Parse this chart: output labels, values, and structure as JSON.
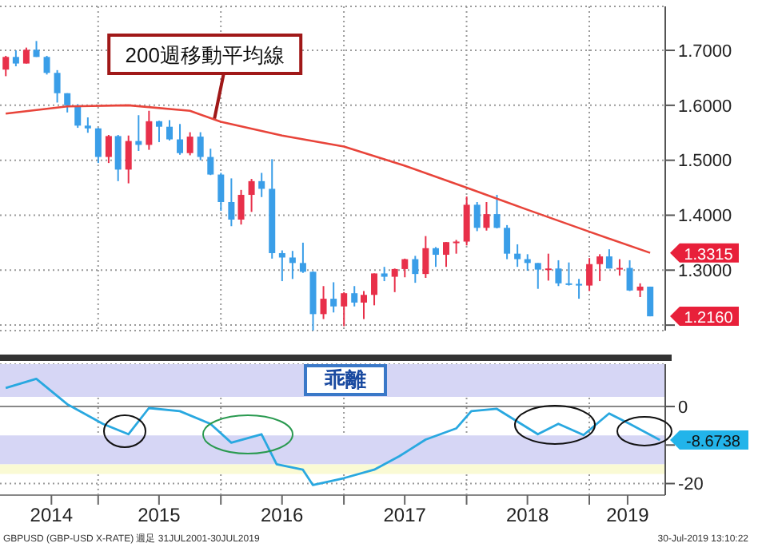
{
  "chart_data": [
    {
      "type": "candlestick",
      "tick_labels": "y",
      "grid": true,
      "x": [
        "2014-04",
        "2014-05",
        "2014-06",
        "2014-07",
        "2014-08",
        "2014-09",
        "2014-10",
        "2014-11",
        "2014-12",
        "2015-01",
        "2015-02",
        "2015-03",
        "2015-04",
        "2015-05",
        "2015-06",
        "2015-07",
        "2015-08",
        "2015-09",
        "2015-10",
        "2015-11",
        "2015-12",
        "2016-01",
        "2016-02",
        "2016-03",
        "2016-04",
        "2016-05",
        "2016-06",
        "2016-07",
        "2016-08",
        "2016-09",
        "2016-10",
        "2016-11",
        "2016-12",
        "2017-01",
        "2017-02",
        "2017-03",
        "2017-04",
        "2017-05",
        "2017-06",
        "2017-07",
        "2017-08",
        "2017-09",
        "2017-10",
        "2017-11",
        "2017-12",
        "2018-01",
        "2018-02",
        "2018-03",
        "2018-04",
        "2018-05",
        "2018-06",
        "2018-07",
        "2018-08",
        "2018-09",
        "2018-10",
        "2018-11",
        "2018-12",
        "2019-01",
        "2019-02",
        "2019-03",
        "2019-04",
        "2019-05",
        "2019-06",
        "2019-07"
      ],
      "ohlc": [
        [
          1.665,
          1.69,
          1.653,
          1.688
        ],
        [
          1.688,
          1.7,
          1.671,
          1.676
        ],
        [
          1.676,
          1.705,
          1.676,
          1.701
        ],
        [
          1.701,
          1.717,
          1.688,
          1.688
        ],
        [
          1.688,
          1.69,
          1.656,
          1.659
        ],
        [
          1.659,
          1.664,
          1.605,
          1.622
        ],
        [
          1.622,
          1.622,
          1.587,
          1.6
        ],
        [
          1.6,
          1.602,
          1.559,
          1.563
        ],
        [
          1.563,
          1.578,
          1.55,
          1.558
        ],
        [
          1.558,
          1.559,
          1.495,
          1.506
        ],
        [
          1.506,
          1.546,
          1.495,
          1.544
        ],
        [
          1.544,
          1.546,
          1.462,
          1.483
        ],
        [
          1.483,
          1.545,
          1.458,
          1.535
        ],
        [
          1.535,
          1.582,
          1.517,
          1.528
        ],
        [
          1.528,
          1.59,
          1.519,
          1.571
        ],
        [
          1.571,
          1.572,
          1.533,
          1.561
        ],
        [
          1.561,
          1.573,
          1.536,
          1.538
        ],
        [
          1.538,
          1.566,
          1.51,
          1.513
        ],
        [
          1.513,
          1.551,
          1.509,
          1.543
        ],
        [
          1.543,
          1.551,
          1.5,
          1.506
        ],
        [
          1.506,
          1.521,
          1.473,
          1.474
        ],
        [
          1.474,
          1.477,
          1.408,
          1.424
        ],
        [
          1.424,
          1.467,
          1.38,
          1.392
        ],
        [
          1.392,
          1.446,
          1.383,
          1.437
        ],
        [
          1.437,
          1.466,
          1.406,
          1.462
        ],
        [
          1.462,
          1.477,
          1.433,
          1.448
        ],
        [
          1.448,
          1.502,
          1.321,
          1.331
        ],
        [
          1.331,
          1.336,
          1.28,
          1.323
        ],
        [
          1.323,
          1.335,
          1.284,
          1.313
        ],
        [
          1.313,
          1.35,
          1.295,
          1.297
        ],
        [
          1.297,
          1.298,
          1.184,
          1.22
        ],
        [
          1.22,
          1.271,
          1.211,
          1.248
        ],
        [
          1.248,
          1.278,
          1.223,
          1.234
        ],
        [
          1.234,
          1.26,
          1.198,
          1.258
        ],
        [
          1.258,
          1.271,
          1.234,
          1.241
        ],
        [
          1.241,
          1.262,
          1.211,
          1.255
        ],
        [
          1.255,
          1.294,
          1.236,
          1.294
        ],
        [
          1.294,
          1.306,
          1.28,
          1.288
        ],
        [
          1.288,
          1.303,
          1.26,
          1.302
        ],
        [
          1.302,
          1.321,
          1.287,
          1.32
        ],
        [
          1.32,
          1.326,
          1.277,
          1.293
        ],
        [
          1.293,
          1.362,
          1.286,
          1.34
        ],
        [
          1.34,
          1.342,
          1.306,
          1.328
        ],
        [
          1.328,
          1.351,
          1.306,
          1.351
        ],
        [
          1.351,
          1.355,
          1.33,
          1.352
        ],
        [
          1.352,
          1.434,
          1.345,
          1.419
        ],
        [
          1.419,
          1.424,
          1.371,
          1.377
        ],
        [
          1.377,
          1.424,
          1.372,
          1.402
        ],
        [
          1.402,
          1.437,
          1.376,
          1.377
        ],
        [
          1.377,
          1.382,
          1.32,
          1.33
        ],
        [
          1.33,
          1.347,
          1.306,
          1.32
        ],
        [
          1.32,
          1.329,
          1.299,
          1.313
        ],
        [
          1.313,
          1.313,
          1.266,
          1.301
        ],
        [
          1.301,
          1.33,
          1.281,
          1.303
        ],
        [
          1.303,
          1.318,
          1.271,
          1.276
        ],
        [
          1.276,
          1.314,
          1.272,
          1.275
        ],
        [
          1.275,
          1.284,
          1.248,
          1.272
        ],
        [
          1.272,
          1.322,
          1.262,
          1.311
        ],
        [
          1.311,
          1.329,
          1.28,
          1.325
        ],
        [
          1.325,
          1.338,
          1.303,
          1.303
        ],
        [
          1.303,
          1.32,
          1.29,
          1.304
        ],
        [
          1.304,
          1.318,
          1.262,
          1.263
        ],
        [
          1.263,
          1.276,
          1.251,
          1.27
        ],
        [
          1.27,
          1.27,
          1.216,
          1.216
        ]
      ],
      "colors": [
        "#e8304a",
        "#3a9ee8",
        "#e8304a",
        "#3a9ee8",
        "#3a9ee8",
        "#3a9ee8",
        "#3a9ee8",
        "#3a9ee8",
        "#3a9ee8",
        "#3a9ee8",
        "#e8304a",
        "#3a9ee8",
        "#e8304a",
        "#3a9ee8",
        "#e8304a",
        "#3a9ee8",
        "#3a9ee8",
        "#3a9ee8",
        "#e8304a",
        "#3a9ee8",
        "#3a9ee8",
        "#3a9ee8",
        "#3a9ee8",
        "#e8304a",
        "#e8304a",
        "#3a9ee8",
        "#3a9ee8",
        "#3a9ee8",
        "#3a9ee8",
        "#3a9ee8",
        "#3a9ee8",
        "#e8304a",
        "#3a9ee8",
        "#e8304a",
        "#3a9ee8",
        "#e8304a",
        "#e8304a",
        "#3a9ee8",
        "#e8304a",
        "#e8304a",
        "#3a9ee8",
        "#e8304a",
        "#3a9ee8",
        "#e8304a",
        "#e8304a",
        "#e8304a",
        "#3a9ee8",
        "#e8304a",
        "#3a9ee8",
        "#3a9ee8",
        "#3a9ee8",
        "#3a9ee8",
        "#3a9ee8",
        "#e8304a",
        "#3a9ee8",
        "#3a9ee8",
        "#3a9ee8",
        "#e8304a",
        "#e8304a",
        "#3a9ee8",
        "#e8304a",
        "#3a9ee8",
        "#e8304a",
        "#3a9ee8"
      ],
      "series": [
        {
          "type": "line",
          "color": "#e8443a",
          "x": [
            "2014-04",
            "2014-10",
            "2015-04",
            "2015-10",
            "2016-01",
            "2016-07",
            "2017-01",
            "2017-07",
            "2018-01",
            "2018-07",
            "2019-01",
            "2019-07"
          ],
          "values": [
            1.585,
            1.598,
            1.6,
            1.59,
            1.57,
            1.545,
            1.525,
            1.49,
            1.45,
            1.41,
            1.37,
            1.3315
          ]
        }
      ],
      "xlim": [
        "2014-03-15",
        "2019-08-15"
      ],
      "xticks": [
        {
          "value": "2015-01-01",
          "label": null
        },
        {
          "value": "2016-01-01",
          "label": null
        },
        {
          "value": "2017-01-01",
          "label": null
        },
        {
          "value": "2018-01-01",
          "label": null
        },
        {
          "value": "2019-01-01",
          "label": null
        }
      ],
      "ylim": [
        1.19,
        1.78
      ],
      "yticks": [
        {
          "value": 1.2,
          "label": null
        },
        {
          "value": 1.3,
          "label": "1.3000"
        },
        {
          "value": 1.4,
          "label": "1.4000"
        },
        {
          "value": 1.5,
          "label": "1.5000"
        },
        {
          "value": 1.6,
          "label": "1.6000"
        },
        {
          "value": 1.7,
          "label": "1.7000"
        }
      ],
      "annotations": [
        {
          "text": "200週移動平均線",
          "x": "2016-01",
          "y": 1.57
        },
        {
          "text": "1.3315",
          "x": "2019-07",
          "y": 1.3315
        },
        {
          "text": "1.2160",
          "x": "2019-07",
          "y": 1.216
        }
      ]
    },
    {
      "type": "line",
      "title": "乖離",
      "grid": true,
      "color": "#29a8e0",
      "x": [
        "2014-04",
        "2014-07",
        "2014-10",
        "2015-01-15",
        "2015-04",
        "2015-06",
        "2015-09",
        "2015-12",
        "2016-02",
        "2016-05",
        "2016-06-15",
        "2016-09",
        "2016-10",
        "2017-01",
        "2017-04",
        "2017-06-15",
        "2017-09",
        "2017-12",
        "2018-01-15",
        "2018-04",
        "2018-08",
        "2018-10",
        "2018-12-15",
        "2019-03",
        "2019-05",
        "2019-07-30"
      ],
      "values": [
        4.8,
        7.2,
        0.6,
        -4.5,
        -7.2,
        -0.4,
        -1.2,
        -4.5,
        -9.4,
        -7.2,
        -15,
        -16.4,
        -20.4,
        -18.6,
        -16.4,
        -12.9,
        -8.6,
        -5.7,
        -1.2,
        -0.6,
        -7.2,
        -4.5,
        -7.4,
        -1.8,
        -4.5,
        -8.6738
      ],
      "xlim": [
        "2014-03-15",
        "2019-08-15"
      ],
      "xticks": [
        {
          "value": "2014-08-15",
          "label": "2014"
        },
        {
          "value": "2015-01-01",
          "label": null
        },
        {
          "value": "2015-07-01",
          "label": "2015"
        },
        {
          "value": "2016-01-01",
          "label": null
        },
        {
          "value": "2016-07-01",
          "label": "2016"
        },
        {
          "value": "2017-01-01",
          "label": null
        },
        {
          "value": "2017-07-01",
          "label": "2017"
        },
        {
          "value": "2018-01-01",
          "label": null
        },
        {
          "value": "2018-07-01",
          "label": "2018"
        },
        {
          "value": "2019-01-01",
          "label": null
        },
        {
          "value": "2019-04-25",
          "label": "2019"
        }
      ],
      "ylim": [
        -23,
        11
      ],
      "yticks": [
        {
          "value": -20,
          "label": "-20"
        },
        {
          "value": -10,
          "label": null
        },
        {
          "value": 0,
          "label": "0"
        }
      ],
      "bands": [
        {
          "axis": "y",
          "from": 2.5,
          "to": 11,
          "color": "#d6d6f5"
        },
        {
          "axis": "y",
          "from": -15,
          "to": -7.5,
          "color": "#d6d6f5"
        },
        {
          "axis": "y",
          "from": -17.5,
          "to": -15,
          "color": "#fafad4"
        }
      ],
      "ref_lines": [
        {
          "axis": "y",
          "value": 0,
          "color": "#888888"
        }
      ],
      "annotations": [
        {
          "text": "-8.6738",
          "x": "2019-07-30",
          "y": -8.6738
        },
        "GBPUSD (GBP-USD X-RATE) 週足 31JUL2001-30JUL2019",
        "30-Jul-2019 13:10:22"
      ]
    }
  ]
}
